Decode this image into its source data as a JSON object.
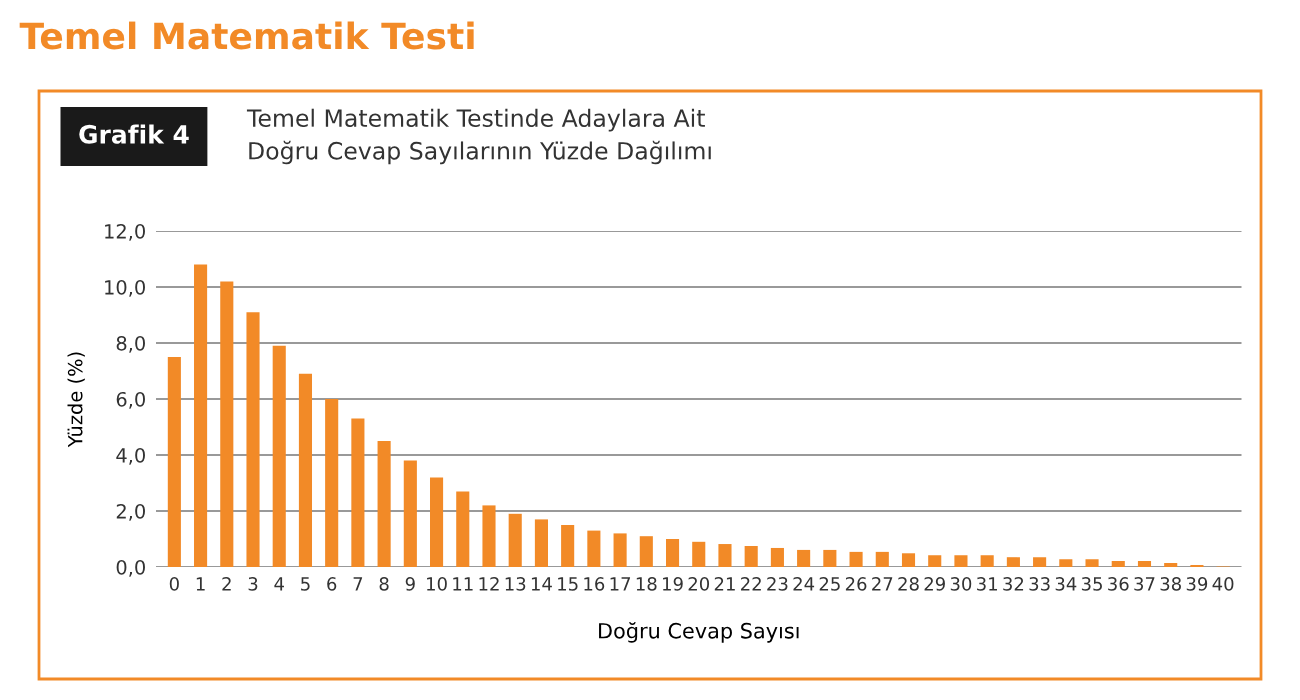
{
  "chart_data": {
    "type": "bar",
    "title": "Temel Matematik Testi",
    "subtitle": "Temel Matematik Testinde Adaylara Ait\nDoğru Cevap Sayılarının Yüzde Dağılımı",
    "annotations": [
      "Grafik 4"
    ],
    "xlabel": "Doğru Cevap Sayısı",
    "ylabel": "Yüzde (%)",
    "categories": [
      "0",
      "1",
      "2",
      "3",
      "4",
      "5",
      "6",
      "7",
      "8",
      "9",
      "10",
      "11",
      "12",
      "13",
      "14",
      "15",
      "16",
      "17",
      "18",
      "19",
      "20",
      "21",
      "22",
      "23",
      "24",
      "25",
      "26",
      "27",
      "28",
      "29",
      "30",
      "31",
      "32",
      "33",
      "34",
      "35",
      "36",
      "37",
      "38",
      "39",
      "40"
    ],
    "values": [
      7.5,
      10.8,
      10.2,
      9.1,
      7.9,
      6.9,
      6.0,
      5.3,
      4.5,
      3.8,
      3.2,
      2.7,
      2.2,
      1.9,
      1.7,
      1.5,
      1.3,
      1.2,
      1.1,
      1.0,
      0.9,
      0.82,
      0.75,
      0.68,
      0.61,
      0.61,
      0.54,
      0.54,
      0.49,
      0.42,
      0.42,
      0.42,
      0.35,
      0.35,
      0.28,
      0.28,
      0.21,
      0.21,
      0.14,
      0.07,
      0.02
    ],
    "color": "#f28a27",
    "ylim": [
      0,
      12
    ],
    "yticks": [
      {
        "value": 0,
        "label": "0,0"
      },
      {
        "value": 2,
        "label": "2,0"
      },
      {
        "value": 4,
        "label": "4,0"
      },
      {
        "value": 6,
        "label": "6,0"
      },
      {
        "value": 8,
        "label": "8,0"
      },
      {
        "value": 10,
        "label": "10,0"
      },
      {
        "value": 12,
        "label": "12,0"
      }
    ],
    "grid": "y"
  }
}
